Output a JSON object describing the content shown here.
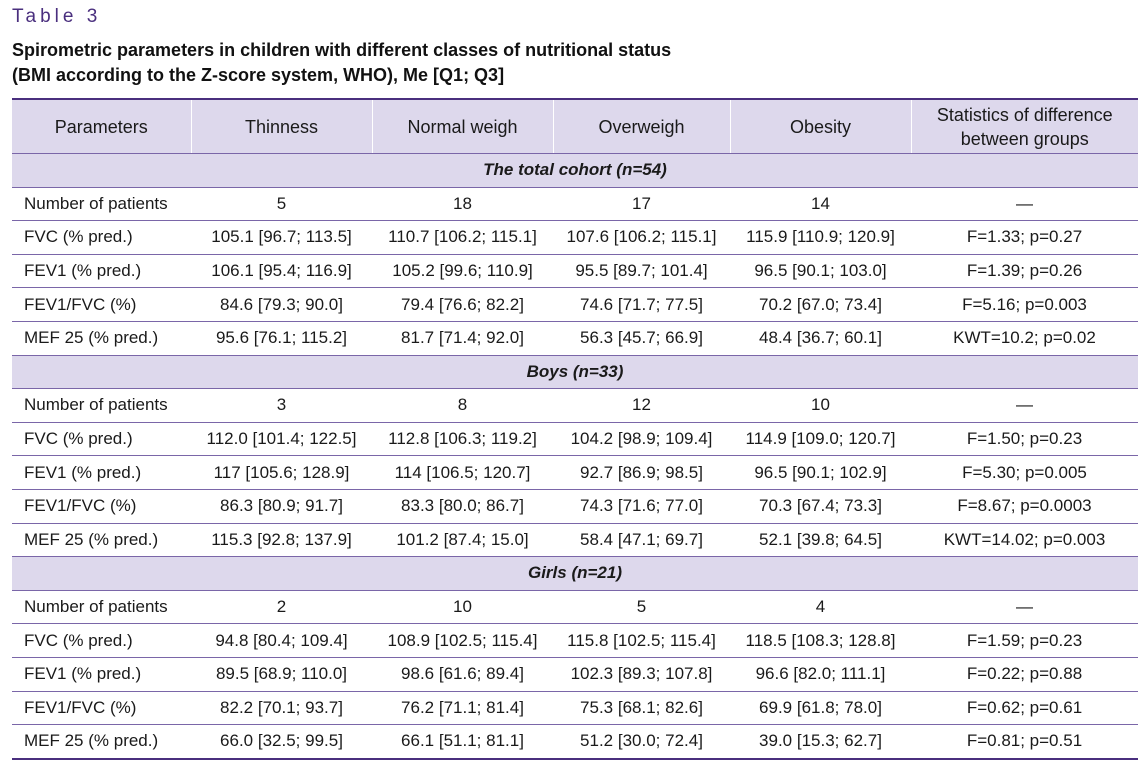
{
  "table_label": "Table 3",
  "caption": {
    "line1": "Spirometric parameters in children with different classes of nutritional status",
    "line2": "(BMI according to the Z-score system, WHO), Me [Q1; Q3]"
  },
  "columns": {
    "parameters": "Parameters",
    "thinness": "Thinness",
    "normal": "Normal weigh",
    "overweigh": "Overweigh",
    "obesity": "Obesity",
    "stats_line1": "Statistics of difference",
    "stats_line2": "between groups"
  },
  "groups": [
    {
      "title": "The total cohort (n=54)",
      "rows": [
        [
          "Number of patients",
          "5",
          "18",
          "17",
          "14",
          "—"
        ],
        [
          "FVC (% pred.)",
          "105.1 [96.7; 113.5]",
          "110.7 [106.2; 115.1]",
          "107.6 [106.2; 115.1]",
          "115.9 [110.9; 120.9]",
          "F=1.33; p=0.27"
        ],
        [
          "FEV1 (% pred.)",
          "106.1 [95.4; 116.9]",
          "105.2 [99.6; 110.9]",
          "95.5 [89.7; 101.4]",
          "96.5 [90.1; 103.0]",
          "F=1.39; p=0.26"
        ],
        [
          "FEV1/FVC (%)",
          "84.6 [79.3; 90.0]",
          "79.4 [76.6; 82.2]",
          "74.6 [71.7; 77.5]",
          "70.2 [67.0; 73.4]",
          "F=5.16; p=0.003"
        ],
        [
          "MEF 25 (% pred.)",
          "95.6 [76.1; 115.2]",
          "81.7 [71.4; 92.0]",
          "56.3 [45.7; 66.9]",
          "48.4 [36.7; 60.1]",
          "KWT=10.2; p=0.02"
        ]
      ]
    },
    {
      "title": "Boys (n=33)",
      "rows": [
        [
          "Number of patients",
          "3",
          "8",
          "12",
          "10",
          "—"
        ],
        [
          "FVC (% pred.)",
          "112.0 [101.4; 122.5]",
          "112.8 [106.3; 119.2]",
          "104.2 [98.9; 109.4]",
          "114.9 [109.0; 120.7]",
          "F=1.50; p=0.23"
        ],
        [
          "FEV1 (% pred.)",
          "117 [105.6; 128.9]",
          "114 [106.5; 120.7]",
          "92.7 [86.9; 98.5]",
          "96.5 [90.1; 102.9]",
          "F=5.30; p=0.005"
        ],
        [
          "FEV1/FVC (%)",
          "86.3 [80.9; 91.7]",
          "83.3 [80.0; 86.7]",
          "74.3 [71.6; 77.0]",
          "70.3 [67.4; 73.3]",
          "F=8.67; p=0.0003"
        ],
        [
          "MEF 25 (% pred.)",
          "115.3 [92.8; 137.9]",
          "101.2 [87.4; 15.0]",
          "58.4 [47.1; 69.7]",
          "52.1 [39.8; 64.5]",
          "KWT=14.02; p=0.003"
        ]
      ]
    },
    {
      "title": "Girls (n=21)",
      "rows": [
        [
          "Number of patients",
          "2",
          "10",
          "5",
          "4",
          "—"
        ],
        [
          "FVC (% pred.)",
          "94.8 [80.4; 109.4]",
          "108.9 [102.5; 115.4]",
          "115.8 [102.5; 115.4]",
          "118.5 [108.3; 128.8]",
          "F=1.59; p=0.23"
        ],
        [
          "FEV1 (% pred.)",
          "89.5 [68.9; 110.0]",
          "98.6 [61.6; 89.4]",
          "102.3 [89.3; 107.8]",
          "96.6 [82.0; 111.1]",
          "F=0.22; p=0.88"
        ],
        [
          "FEV1/FVC (%)",
          "82.2 [70.1; 93.7]",
          "76.2 [71.1; 81.4]",
          "75.3 [68.1; 82.6]",
          "69.9 [61.8; 78.0]",
          "F=0.62; p=0.61"
        ],
        [
          "MEF 25 (% pred.)",
          "66.0 [32.5; 99.5]",
          "66.1 [51.1; 81.1]",
          "51.2 [30.0; 72.4]",
          "39.0 [15.3; 62.7]",
          "F=0.81; p=0.51"
        ]
      ]
    }
  ],
  "colors": {
    "accent": "#4a2f7e",
    "header_fill": "#ddd8ec",
    "rule": "#7a66a8"
  }
}
